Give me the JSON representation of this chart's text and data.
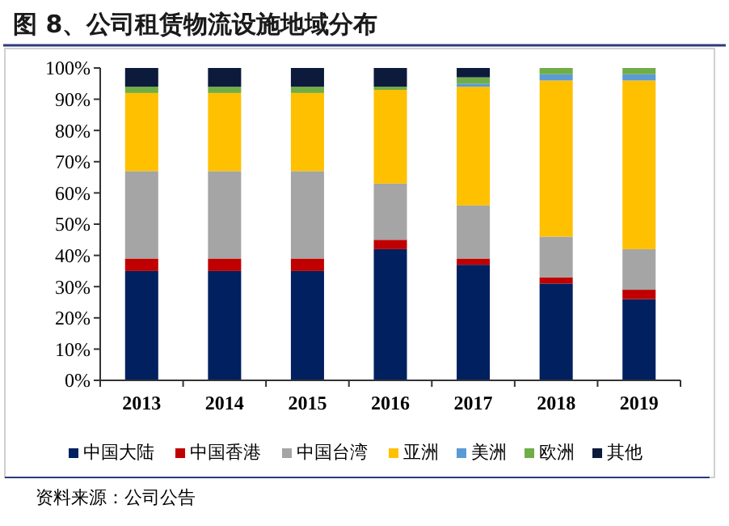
{
  "chart_data": {
    "type": "bar",
    "stacked": true,
    "title": "图 8、公司租赁物流设施地域分布",
    "categories": [
      "2013",
      "2014",
      "2015",
      "2016",
      "2017",
      "2018",
      "2019"
    ],
    "series": [
      {
        "name": "中国大陆",
        "color": "#002060",
        "values": [
          35,
          35,
          35,
          42,
          37,
          31,
          26
        ]
      },
      {
        "name": "中国香港",
        "color": "#c00000",
        "values": [
          4,
          4,
          4,
          3,
          2,
          2,
          3
        ]
      },
      {
        "name": "中国台湾",
        "color": "#a5a5a5",
        "values": [
          28,
          28,
          28,
          18,
          17,
          13,
          13
        ]
      },
      {
        "name": "亚洲",
        "color": "#ffc000",
        "values": [
          25,
          25,
          25,
          30,
          38,
          50,
          54
        ]
      },
      {
        "name": "美洲",
        "color": "#5b9bd5",
        "values": [
          0,
          0,
          0,
          0,
          1,
          2,
          2
        ]
      },
      {
        "name": "欧洲",
        "color": "#70ad47",
        "values": [
          2,
          2,
          2,
          1,
          2,
          2,
          2
        ]
      },
      {
        "name": "其他",
        "color": "#0c1a3c",
        "values": [
          6,
          6,
          6,
          6,
          3,
          0,
          0
        ]
      }
    ],
    "ylim": [
      0,
      100
    ],
    "yticks": [
      {
        "value": 0,
        "label": "0%"
      },
      {
        "value": 10,
        "label": "10%"
      },
      {
        "value": 20,
        "label": "20%"
      },
      {
        "value": 30,
        "label": "30%"
      },
      {
        "value": 40,
        "label": "40%"
      },
      {
        "value": 50,
        "label": "50%"
      },
      {
        "value": 60,
        "label": "60%"
      },
      {
        "value": 70,
        "label": "70%"
      },
      {
        "value": 80,
        "label": "80%"
      },
      {
        "value": 90,
        "label": "90%"
      },
      {
        "value": 100,
        "label": "100%"
      }
    ],
    "grid": false,
    "legend": "bottom",
    "annotations": [
      "资料来源：公司公告"
    ]
  }
}
